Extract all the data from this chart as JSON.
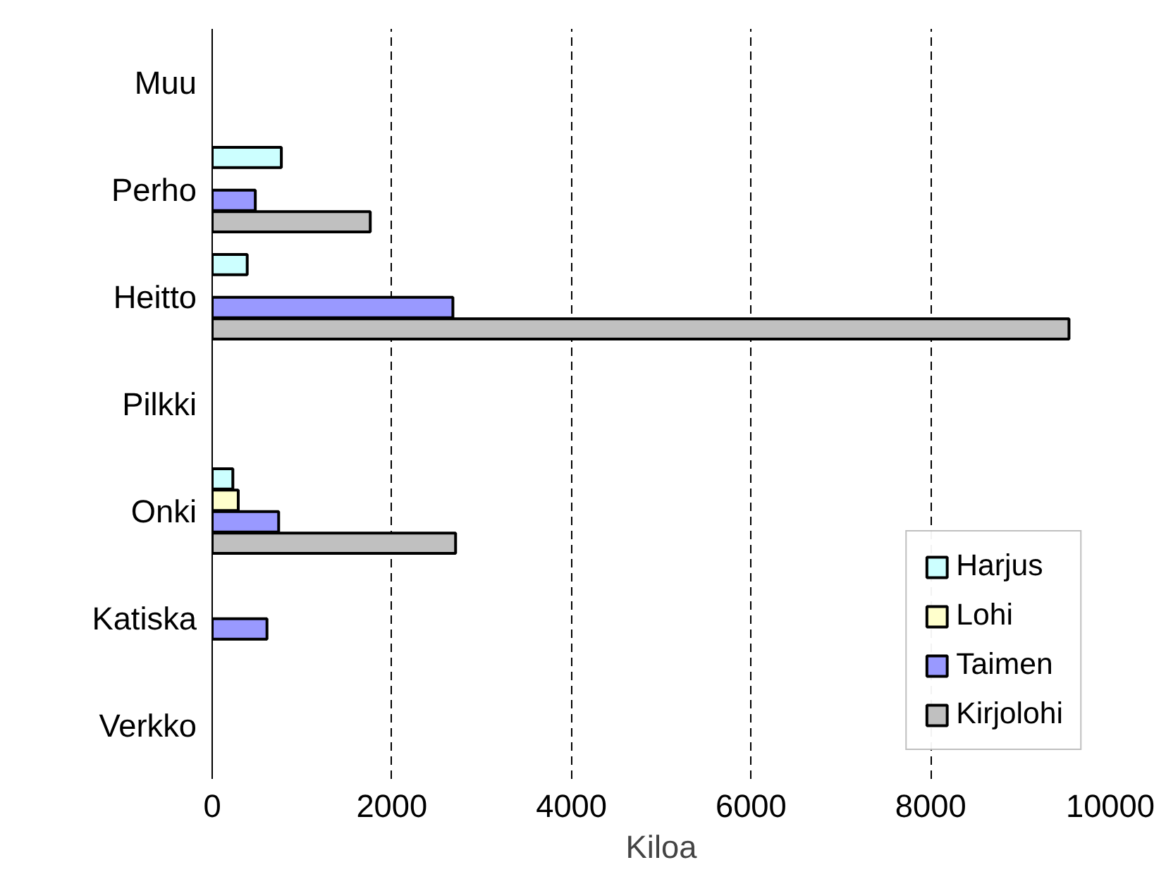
{
  "chart_data": {
    "type": "bar",
    "orientation": "horizontal",
    "xlabel": "Kiloa",
    "categories": [
      "Muu",
      "Perho",
      "Heitto",
      "Pilkki",
      "Onki",
      "Katiska",
      "Verkko"
    ],
    "series": [
      {
        "name": "Harjus",
        "color": "#ccffff",
        "values": [
          null,
          770,
          390,
          null,
          230,
          null,
          null
        ]
      },
      {
        "name": "Lohi",
        "color": "#ffffcc",
        "values": [
          null,
          null,
          null,
          null,
          290,
          null,
          null
        ]
      },
      {
        "name": "Taimen",
        "color": "#9999ff",
        "values": [
          null,
          480,
          2680,
          null,
          740,
          610,
          null
        ]
      },
      {
        "name": "Kirjolohi",
        "color": "#c0c0c0",
        "values": [
          null,
          1760,
          9540,
          null,
          2710,
          null,
          null
        ]
      }
    ],
    "xlim": [
      0,
      10000
    ],
    "xticks": [
      0,
      2000,
      4000,
      6000,
      8000,
      10000
    ],
    "grid": "x",
    "legend": "bottom right"
  }
}
